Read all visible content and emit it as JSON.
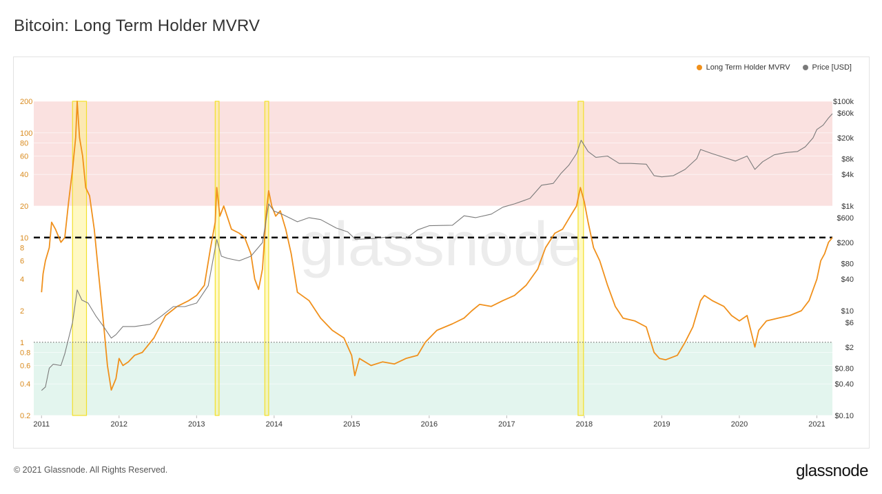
{
  "page": {
    "title": "Bitcoin: Long Term Holder MVRV",
    "footer": "© 2021 Glassnode. All Rights Reserved.",
    "brand": "glassnode",
    "watermark": "glassnode"
  },
  "chart_data": {
    "type": "line",
    "title": "Bitcoin: Long Term Holder MVRV",
    "xlabel": "",
    "ylabel": "",
    "x_ticks": [
      "2011",
      "2012",
      "2013",
      "2014",
      "2015",
      "2016",
      "2017",
      "2018",
      "2019",
      "2020",
      "2021"
    ],
    "x_range": [
      2010.9,
      2021.2
    ],
    "left_axis": {
      "scale": "log",
      "ticks": [
        "0.2",
        "0.4",
        "0.6",
        "0.8",
        "1",
        "2",
        "4",
        "6",
        "8",
        "10",
        "20",
        "40",
        "60",
        "80",
        "100",
        "200"
      ],
      "range": [
        0.2,
        200
      ],
      "color": "#d98a1d"
    },
    "right_axis": {
      "scale": "log",
      "ticks": [
        "$0.10",
        "$0.40",
        "$0.80",
        "$2",
        "$6",
        "$10",
        "$40",
        "$80",
        "$200",
        "$600",
        "$1k",
        "$4k",
        "$8k",
        "$20k",
        "$60k",
        "$100k"
      ],
      "range": [
        0.1,
        100000
      ],
      "color": "#333333"
    },
    "reference_lines": [
      {
        "value": 10,
        "style": "dashed",
        "color": "#000000"
      },
      {
        "value": 1,
        "style": "dotted",
        "color": "#555555"
      }
    ],
    "zones": [
      {
        "from": 20,
        "to": 200,
        "color": "#f8d7d5"
      },
      {
        "from": 0.2,
        "to": 1,
        "color": "#d9f2e8"
      }
    ],
    "highlight_periods": [
      {
        "from": 2011.4,
        "to": 2011.58
      },
      {
        "from": 2013.24,
        "to": 2013.29
      },
      {
        "from": 2013.88,
        "to": 2013.93
      },
      {
        "from": 2017.92,
        "to": 2017.99
      }
    ],
    "legend_position": "top-right",
    "series": [
      {
        "name": "Long Term Holder MVRV",
        "axis": "left",
        "color": "#f0901b",
        "points": [
          [
            2011.0,
            3.0
          ],
          [
            2011.02,
            4.5
          ],
          [
            2011.05,
            6.0
          ],
          [
            2011.1,
            8.0
          ],
          [
            2011.13,
            14
          ],
          [
            2011.18,
            12
          ],
          [
            2011.25,
            9
          ],
          [
            2011.3,
            10
          ],
          [
            2011.35,
            22
          ],
          [
            2011.4,
            45
          ],
          [
            2011.44,
            90
          ],
          [
            2011.46,
            200
          ],
          [
            2011.49,
            90
          ],
          [
            2011.53,
            60
          ],
          [
            2011.57,
            30
          ],
          [
            2011.62,
            25
          ],
          [
            2011.68,
            12
          ],
          [
            2011.73,
            5
          ],
          [
            2011.8,
            1.5
          ],
          [
            2011.85,
            0.6
          ],
          [
            2011.9,
            0.35
          ],
          [
            2011.96,
            0.45
          ],
          [
            2012.0,
            0.7
          ],
          [
            2012.05,
            0.6
          ],
          [
            2012.12,
            0.65
          ],
          [
            2012.2,
            0.75
          ],
          [
            2012.3,
            0.8
          ],
          [
            2012.45,
            1.1
          ],
          [
            2012.6,
            1.8
          ],
          [
            2012.75,
            2.2
          ],
          [
            2012.9,
            2.5
          ],
          [
            2013.0,
            2.8
          ],
          [
            2013.1,
            3.5
          ],
          [
            2013.18,
            8
          ],
          [
            2013.24,
            14
          ],
          [
            2013.26,
            30
          ],
          [
            2013.3,
            16
          ],
          [
            2013.35,
            20
          ],
          [
            2013.45,
            12
          ],
          [
            2013.55,
            11
          ],
          [
            2013.62,
            10
          ],
          [
            2013.7,
            7
          ],
          [
            2013.75,
            4
          ],
          [
            2013.8,
            3.2
          ],
          [
            2013.85,
            5
          ],
          [
            2013.9,
            18
          ],
          [
            2013.93,
            28
          ],
          [
            2013.97,
            20
          ],
          [
            2014.02,
            16
          ],
          [
            2014.08,
            18
          ],
          [
            2014.15,
            12
          ],
          [
            2014.22,
            7
          ],
          [
            2014.3,
            3
          ],
          [
            2014.45,
            2.5
          ],
          [
            2014.6,
            1.7
          ],
          [
            2014.75,
            1.3
          ],
          [
            2014.9,
            1.1
          ],
          [
            2015.0,
            0.75
          ],
          [
            2015.04,
            0.48
          ],
          [
            2015.1,
            0.7
          ],
          [
            2015.25,
            0.6
          ],
          [
            2015.4,
            0.65
          ],
          [
            2015.55,
            0.62
          ],
          [
            2015.7,
            0.7
          ],
          [
            2015.85,
            0.75
          ],
          [
            2015.95,
            1.0
          ],
          [
            2016.1,
            1.3
          ],
          [
            2016.3,
            1.5
          ],
          [
            2016.45,
            1.7
          ],
          [
            2016.55,
            2.0
          ],
          [
            2016.65,
            2.3
          ],
          [
            2016.8,
            2.2
          ],
          [
            2016.95,
            2.5
          ],
          [
            2017.1,
            2.8
          ],
          [
            2017.25,
            3.5
          ],
          [
            2017.4,
            5
          ],
          [
            2017.5,
            8
          ],
          [
            2017.62,
            11
          ],
          [
            2017.72,
            12
          ],
          [
            2017.82,
            16
          ],
          [
            2017.9,
            20
          ],
          [
            2017.95,
            30
          ],
          [
            2018.0,
            22
          ],
          [
            2018.05,
            14
          ],
          [
            2018.12,
            8
          ],
          [
            2018.2,
            6
          ],
          [
            2018.3,
            3.5
          ],
          [
            2018.4,
            2.2
          ],
          [
            2018.5,
            1.7
          ],
          [
            2018.65,
            1.6
          ],
          [
            2018.8,
            1.4
          ],
          [
            2018.9,
            0.8
          ],
          [
            2018.97,
            0.7
          ],
          [
            2019.05,
            0.68
          ],
          [
            2019.2,
            0.75
          ],
          [
            2019.3,
            1.0
          ],
          [
            2019.4,
            1.4
          ],
          [
            2019.5,
            2.5
          ],
          [
            2019.55,
            2.8
          ],
          [
            2019.65,
            2.5
          ],
          [
            2019.8,
            2.2
          ],
          [
            2019.9,
            1.8
          ],
          [
            2020.0,
            1.6
          ],
          [
            2020.1,
            1.8
          ],
          [
            2020.2,
            0.9
          ],
          [
            2020.25,
            1.3
          ],
          [
            2020.35,
            1.6
          ],
          [
            2020.5,
            1.7
          ],
          [
            2020.65,
            1.8
          ],
          [
            2020.8,
            2.0
          ],
          [
            2020.9,
            2.5
          ],
          [
            2021.0,
            4
          ],
          [
            2021.05,
            6
          ],
          [
            2021.1,
            7
          ],
          [
            2021.15,
            9
          ],
          [
            2021.2,
            10
          ]
        ]
      },
      {
        "name": "Price [USD]",
        "axis": "right",
        "color": "#7a7a7a",
        "points": [
          [
            2011.0,
            0.3
          ],
          [
            2011.05,
            0.35
          ],
          [
            2011.1,
            0.8
          ],
          [
            2011.15,
            0.95
          ],
          [
            2011.25,
            0.9
          ],
          [
            2011.3,
            1.5
          ],
          [
            2011.4,
            6
          ],
          [
            2011.46,
            25
          ],
          [
            2011.52,
            16
          ],
          [
            2011.6,
            14
          ],
          [
            2011.7,
            8
          ],
          [
            2011.8,
            5
          ],
          [
            2011.9,
            3
          ],
          [
            2011.96,
            3.5
          ],
          [
            2012.05,
            5
          ],
          [
            2012.2,
            5
          ],
          [
            2012.4,
            5.5
          ],
          [
            2012.55,
            8
          ],
          [
            2012.7,
            12
          ],
          [
            2012.85,
            12
          ],
          [
            2013.0,
            14
          ],
          [
            2013.15,
            30
          ],
          [
            2013.26,
            230
          ],
          [
            2013.32,
            110
          ],
          [
            2013.4,
            100
          ],
          [
            2013.55,
            90
          ],
          [
            2013.7,
            110
          ],
          [
            2013.85,
            200
          ],
          [
            2013.93,
            1100
          ],
          [
            2014.0,
            800
          ],
          [
            2014.1,
            700
          ],
          [
            2014.3,
            500
          ],
          [
            2014.45,
            600
          ],
          [
            2014.6,
            550
          ],
          [
            2014.8,
            380
          ],
          [
            2014.95,
            320
          ],
          [
            2015.05,
            230
          ],
          [
            2015.3,
            240
          ],
          [
            2015.5,
            260
          ],
          [
            2015.7,
            240
          ],
          [
            2015.85,
            350
          ],
          [
            2016.0,
            420
          ],
          [
            2016.3,
            430
          ],
          [
            2016.45,
            650
          ],
          [
            2016.6,
            600
          ],
          [
            2016.8,
            700
          ],
          [
            2016.95,
            950
          ],
          [
            2017.1,
            1100
          ],
          [
            2017.3,
            1400
          ],
          [
            2017.45,
            2500
          ],
          [
            2017.6,
            2700
          ],
          [
            2017.7,
            4200
          ],
          [
            2017.8,
            6000
          ],
          [
            2017.9,
            10000
          ],
          [
            2017.96,
            18000
          ],
          [
            2018.05,
            11000
          ],
          [
            2018.15,
            8500
          ],
          [
            2018.3,
            9000
          ],
          [
            2018.45,
            6500
          ],
          [
            2018.6,
            6500
          ],
          [
            2018.8,
            6300
          ],
          [
            2018.9,
            3800
          ],
          [
            2019.0,
            3600
          ],
          [
            2019.15,
            3800
          ],
          [
            2019.3,
            5000
          ],
          [
            2019.45,
            8000
          ],
          [
            2019.5,
            12000
          ],
          [
            2019.65,
            10000
          ],
          [
            2019.8,
            8500
          ],
          [
            2019.95,
            7200
          ],
          [
            2020.1,
            9000
          ],
          [
            2020.2,
            5000
          ],
          [
            2020.3,
            7000
          ],
          [
            2020.45,
            9500
          ],
          [
            2020.6,
            10500
          ],
          [
            2020.75,
            11000
          ],
          [
            2020.85,
            13500
          ],
          [
            2020.95,
            20000
          ],
          [
            2021.0,
            29000
          ],
          [
            2021.08,
            35000
          ],
          [
            2021.15,
            48000
          ],
          [
            2021.2,
            58000
          ]
        ]
      }
    ]
  }
}
